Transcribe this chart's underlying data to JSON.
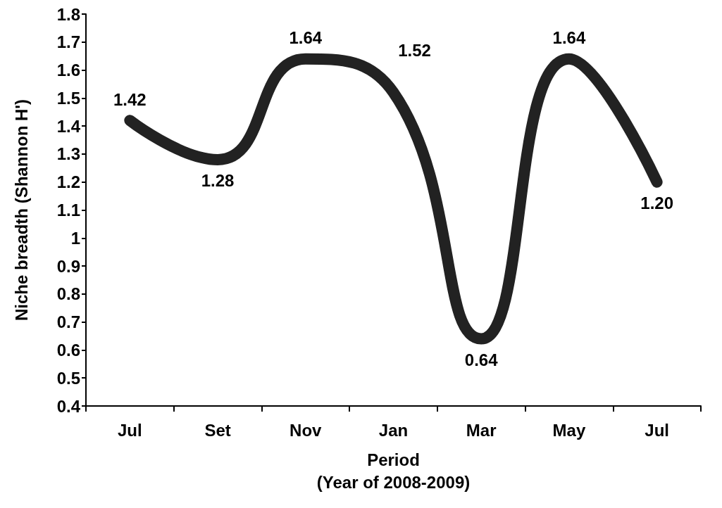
{
  "chart_data": {
    "type": "line",
    "xlabel": "Period\n(Year of 2008-2009)",
    "ylabel": "Niche breadth (Shannon H')",
    "categories": [
      "Jul",
      "Set",
      "Nov",
      "Jan",
      "Mar",
      "May",
      "Jul"
    ],
    "series": [
      {
        "color": "#222222",
        "values": [
          1.42,
          1.28,
          1.64,
          1.52,
          0.64,
          1.64,
          1.2
        ],
        "value_labels": [
          "1.42",
          "1.28",
          "1.64",
          "1.52",
          "0.64",
          "1.64",
          "1.20"
        ]
      }
    ],
    "ylim": [
      0.4,
      1.8
    ],
    "yticks": [
      0.4,
      0.5,
      0.6,
      0.7,
      0.8,
      0.9,
      1,
      1.1,
      1.2,
      1.3,
      1.4,
      1.5,
      1.6,
      1.7,
      1.8
    ],
    "marker": "none",
    "line_style": "solid"
  }
}
